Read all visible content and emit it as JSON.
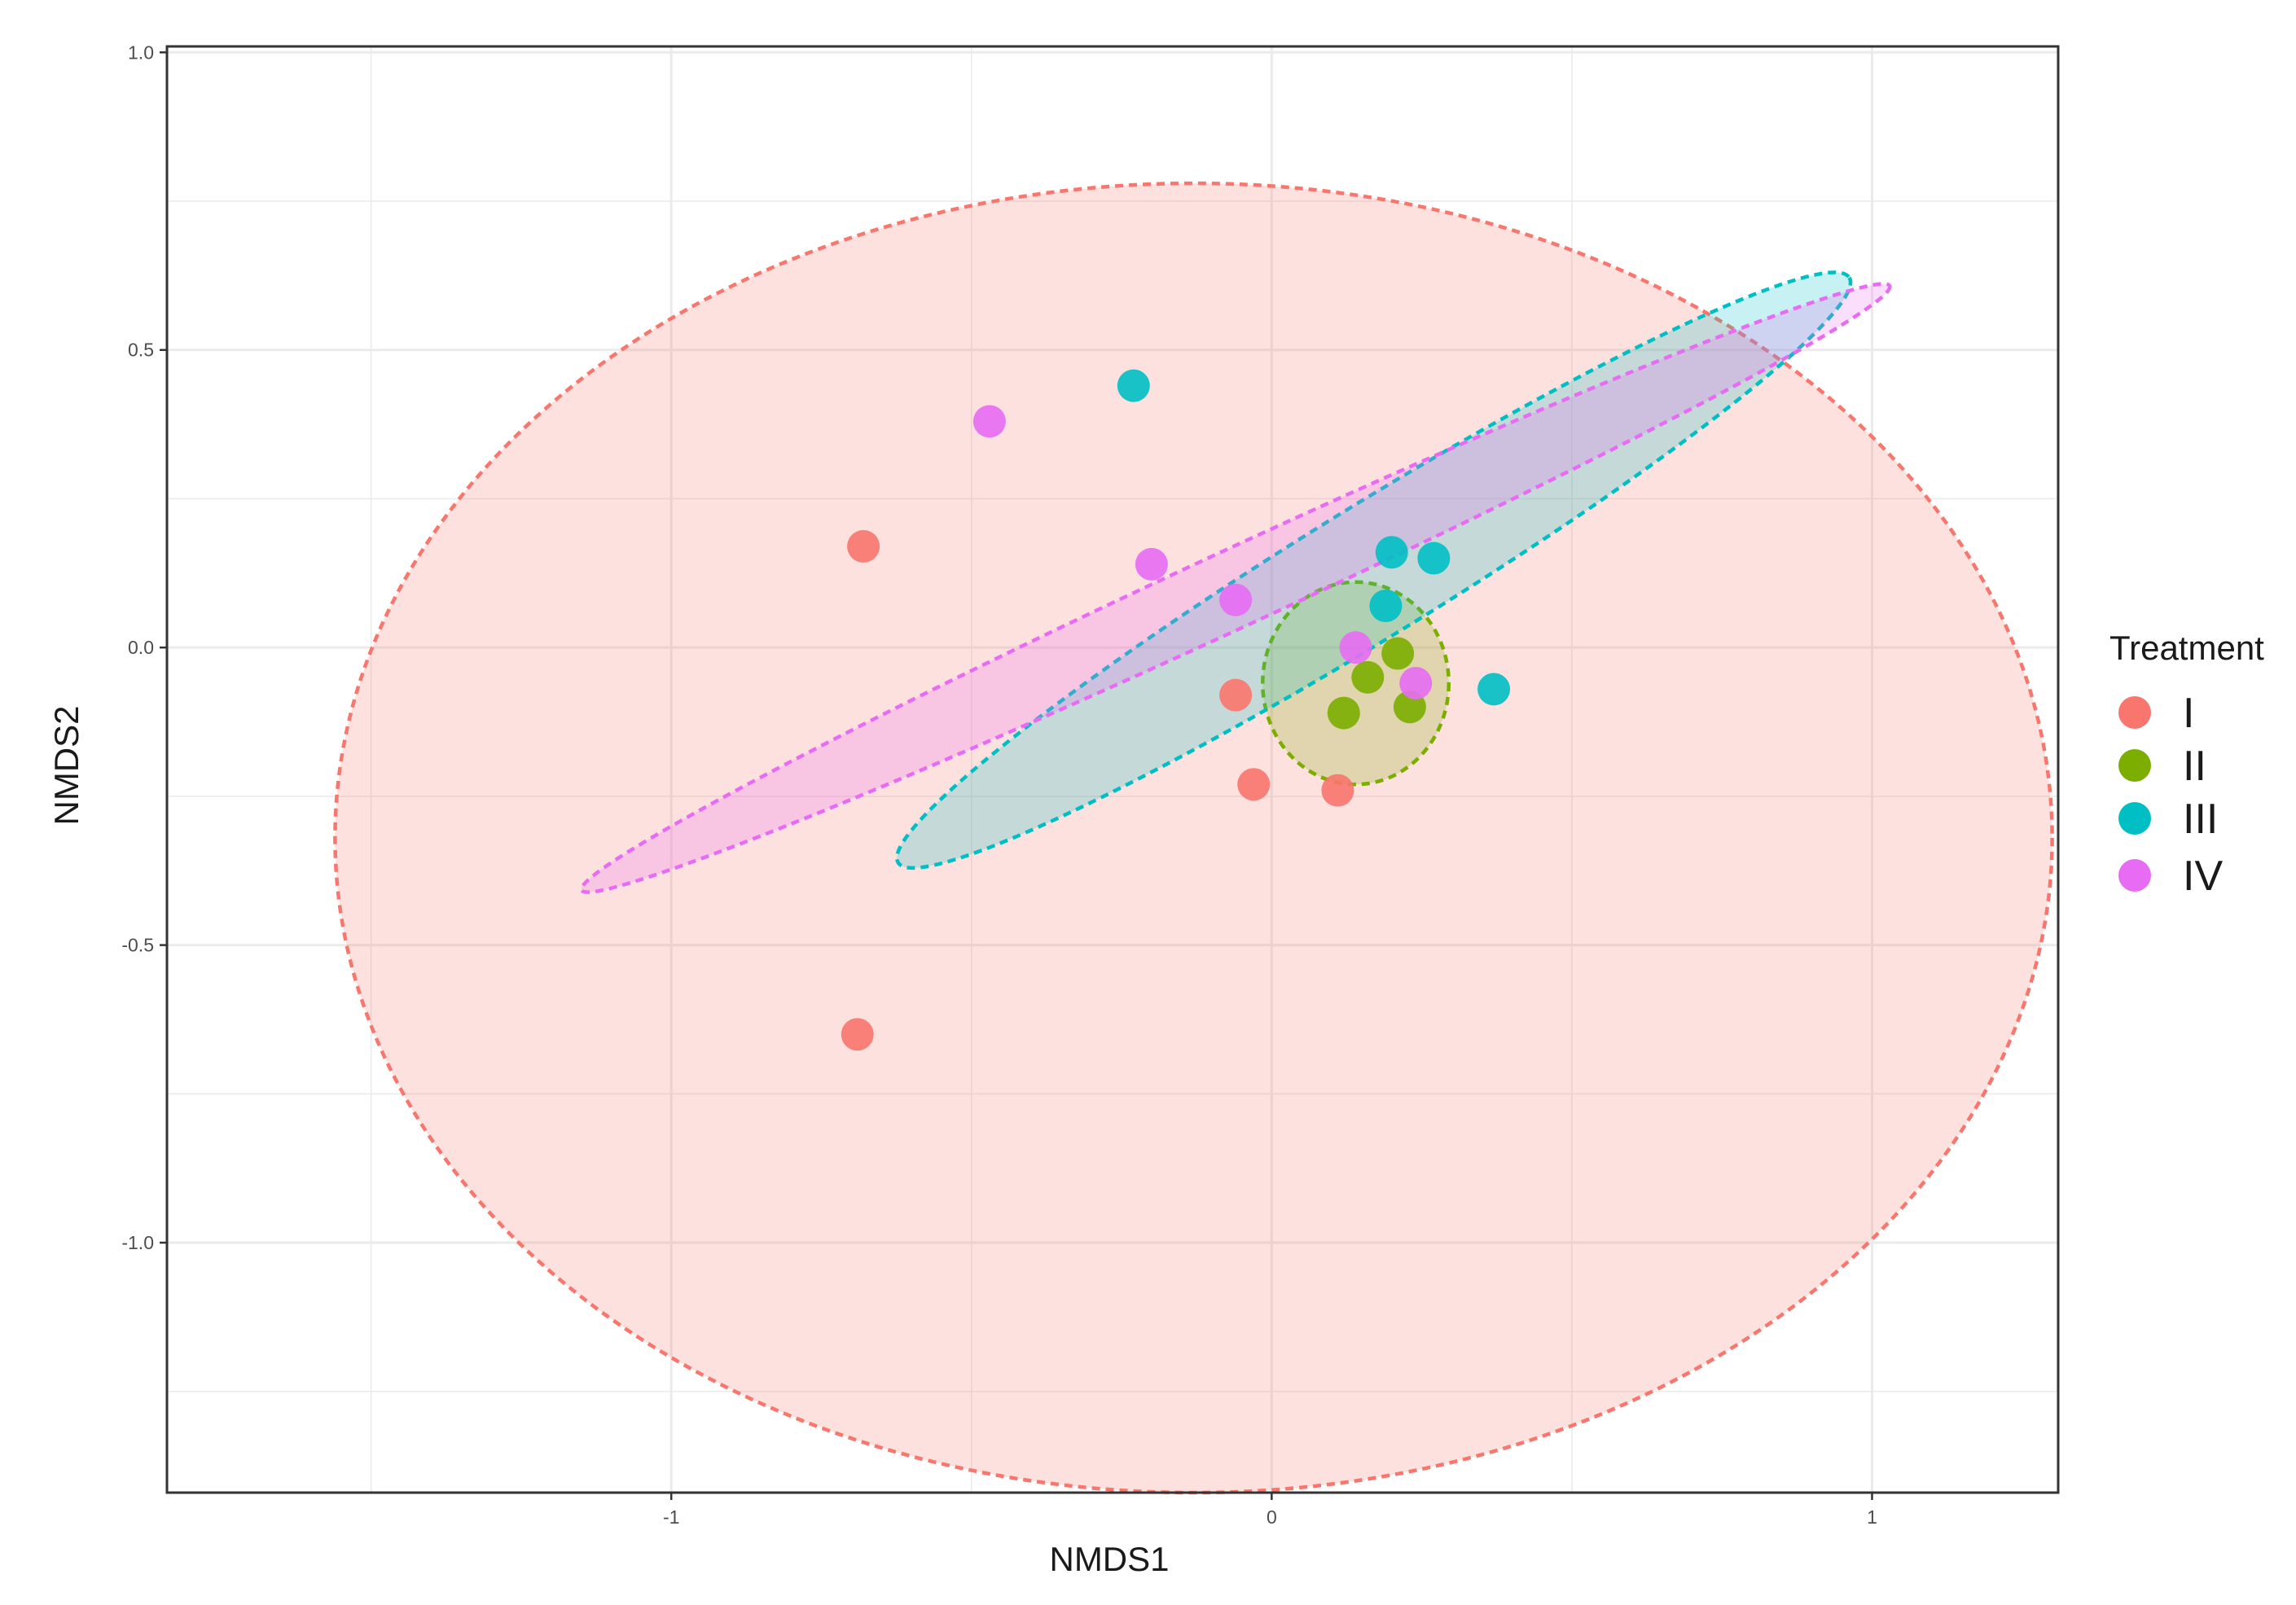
{
  "chart_data": {
    "type": "scatter",
    "subtype": "NMDS ordination with confidence ellipses",
    "xlabel": "NMDS1",
    "ylabel": "NMDS2",
    "xlim": [
      -1.84,
      1.31
    ],
    "ylim": [
      -1.42,
      1.01
    ],
    "grid": true,
    "x_ticks": [
      {
        "value": -1,
        "label": "-1"
      },
      {
        "value": 0,
        "label": "0"
      },
      {
        "value": 1,
        "label": "1"
      }
    ],
    "y_ticks": [
      {
        "value": 1.0,
        "label": "1.0"
      },
      {
        "value": 0.5,
        "label": "0.5"
      },
      {
        "value": 0.0,
        "label": "0.0"
      },
      {
        "value": -0.5,
        "label": "-0.5"
      },
      {
        "value": -1.0,
        "label": "-1.0"
      }
    ],
    "legend": {
      "title": "Treatment",
      "position": "right"
    },
    "series": [
      {
        "name": "I",
        "color": "#F8766D",
        "points": [
          {
            "x": -0.68,
            "y": 0.17
          },
          {
            "x": -0.69,
            "y": -0.65
          },
          {
            "x": -0.06,
            "y": -0.08
          },
          {
            "x": -0.03,
            "y": -0.23
          },
          {
            "x": 0.11,
            "y": -0.24
          }
        ],
        "ellipse": {
          "cx": -0.13,
          "cy": -0.32,
          "rx": 1.43,
          "ry": 1.1,
          "angle_deg": 0
        }
      },
      {
        "name": "II",
        "color": "#7CAE00",
        "points": [
          {
            "x": 0.16,
            "y": -0.05
          },
          {
            "x": 0.21,
            "y": -0.01
          },
          {
            "x": 0.12,
            "y": -0.11
          },
          {
            "x": 0.23,
            "y": -0.1
          }
        ],
        "ellipse": {
          "cx": 0.14,
          "cy": -0.06,
          "rx": 0.155,
          "ry": 0.17,
          "angle_deg": 0
        }
      },
      {
        "name": "III",
        "color": "#00BFC4",
        "points": [
          {
            "x": -0.23,
            "y": 0.44
          },
          {
            "x": 0.2,
            "y": 0.16
          },
          {
            "x": 0.27,
            "y": 0.15
          },
          {
            "x": 0.19,
            "y": 0.07
          },
          {
            "x": 0.37,
            "y": -0.07
          }
        ],
        "ellipse": {
          "cx": 0.17,
          "cy": 0.13,
          "rx": 0.93,
          "ry": 0.11,
          "angle_deg": -31.6
        }
      },
      {
        "name": "IV",
        "color": "#E76BF3",
        "points": [
          {
            "x": -0.47,
            "y": 0.38
          },
          {
            "x": -0.2,
            "y": 0.14
          },
          {
            "x": -0.06,
            "y": 0.08
          },
          {
            "x": 0.14,
            "y": 0.0
          },
          {
            "x": 0.24,
            "y": -0.06
          }
        ],
        "ellipse": {
          "cx": -0.06,
          "cy": 0.1,
          "rx": 1.2,
          "ry": 0.065,
          "angle_deg": -24.8
        }
      }
    ]
  }
}
